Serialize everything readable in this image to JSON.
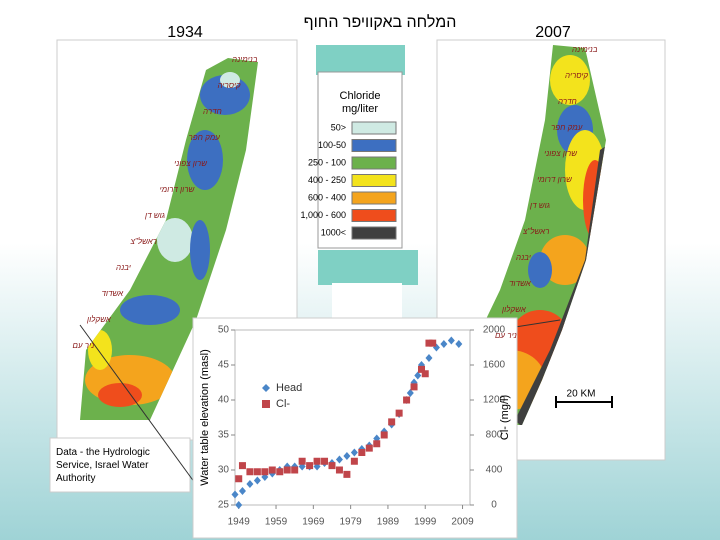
{
  "header": {
    "left_year": "1934",
    "title": "המלחה באקוויפר החוף",
    "right_year": "2007"
  },
  "legend": {
    "title": "Chloride mg/liter",
    "items": [
      {
        "label": "50>",
        "color": "#cfeae3"
      },
      {
        "label": "100-50",
        "color": "#3d6fc1"
      },
      {
        "label": "250 - 100",
        "color": "#6cb14c"
      },
      {
        "label": "400 - 250",
        "color": "#f3e31c"
      },
      {
        "label": "600 - 400",
        "color": "#f4a41d"
      },
      {
        "label": "1,000 - 600",
        "color": "#ef4d1c"
      },
      {
        "label": "1000<",
        "color": "#3f3f3f"
      }
    ]
  },
  "map_labels": [
    "בנימינה",
    "קיסריה",
    "חדרה",
    "עמק חפר",
    "שרון צפוני",
    "שרון דרומי",
    "גוש דן",
    "ראשל\"צ",
    "יבנה",
    "אשדוד",
    "אשקלון",
    "ניר עם"
  ],
  "note": "Data - the Hydrologic Service, Israel Water Authority",
  "scale_bar": "20 KM",
  "chart_data": {
    "type": "scatter",
    "y_label": "Water table elevation (masl)",
    "y2_label": "Cl- (mg/l)",
    "xlim": [
      1948,
      2011
    ],
    "xticks": [
      1949,
      1959,
      1969,
      1979,
      1989,
      1999,
      2009
    ],
    "ylim": [
      25,
      50
    ],
    "yticks": [
      25,
      30,
      35,
      40,
      45,
      50
    ],
    "y2lim": [
      0,
      2000
    ],
    "y2ticks": [
      0,
      400,
      800,
      1200,
      1600,
      2000
    ],
    "series": [
      {
        "name": "Head",
        "color": "#4a86c8",
        "marker": "diamond",
        "x": [
          1948,
          1949,
          1950,
          1952,
          1954,
          1956,
          1958,
          1960,
          1962,
          1964,
          1966,
          1968,
          1970,
          1972,
          1974,
          1976,
          1978,
          1980,
          1982,
          1984,
          1986,
          1988,
          1990,
          1992,
          1994,
          1995,
          1996,
          1997,
          1998,
          2000,
          2002,
          2004,
          2006,
          2008
        ],
        "values": [
          26.5,
          25,
          27,
          28,
          28.5,
          29,
          29.5,
          30,
          30.5,
          30.5,
          30.5,
          30.5,
          30.5,
          31,
          31,
          31.5,
          32,
          32.5,
          33,
          33.5,
          34.5,
          35.5,
          36.5,
          38,
          40,
          41,
          42.5,
          43.5,
          45,
          46,
          47.5,
          48,
          48.5,
          48
        ]
      },
      {
        "name": "Cl-",
        "color": "#c0454a",
        "marker": "square",
        "axis": "y2",
        "x": [
          1949,
          1950,
          1952,
          1954,
          1956,
          1958,
          1960,
          1962,
          1964,
          1966,
          1968,
          1970,
          1972,
          1974,
          1976,
          1978,
          1980,
          1982,
          1984,
          1986,
          1988,
          1990,
          1992,
          1994,
          1996,
          1998,
          1999,
          2000,
          2001
        ],
        "values": [
          300,
          450,
          380,
          380,
          380,
          400,
          380,
          400,
          400,
          500,
          450,
          500,
          500,
          450,
          400,
          350,
          500,
          600,
          650,
          700,
          800,
          950,
          1050,
          1200,
          1350,
          1550,
          1500,
          1850,
          1850
        ]
      }
    ]
  }
}
